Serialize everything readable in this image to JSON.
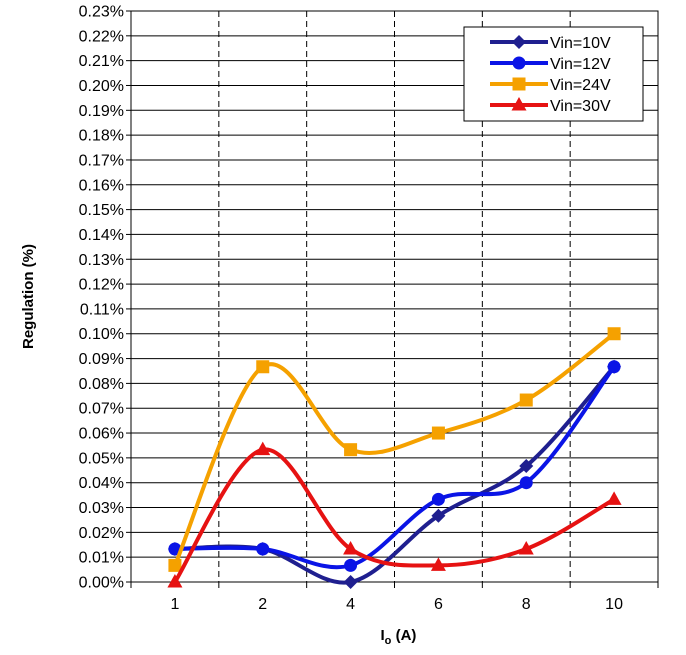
{
  "chart_data": {
    "type": "line",
    "categories": [
      "1",
      "2",
      "4",
      "6",
      "8",
      "10"
    ],
    "ylabel": "Regulation (%)",
    "xlabel": {
      "main": "I",
      "sub": "o",
      "rest": " (A)"
    },
    "ylim": [
      0,
      0.23
    ],
    "ytick_step": 0.01,
    "ytick_labels": [
      "0.00%",
      "0.01%",
      "0.02%",
      "0.03%",
      "0.04%",
      "0.05%",
      "0.06%",
      "0.07%",
      "0.08%",
      "0.09%",
      "0.10%",
      "0.11%",
      "0.12%",
      "0.13%",
      "0.14%",
      "0.15%",
      "0.16%",
      "0.17%",
      "0.18%",
      "0.19%",
      "0.20%",
      "0.21%",
      "0.22%",
      "0.23%"
    ],
    "grid": {
      "horizontal": "solid",
      "vertical": "dashed"
    },
    "legend": "top-right",
    "series": [
      {
        "name": "Vin=10V",
        "color": "#1f1f8f",
        "marker": "diamond",
        "values": [
          0.0133,
          0.0133,
          0.0,
          0.0267,
          0.0467,
          0.0867
        ]
      },
      {
        "name": "Vin=12V",
        "color": "#0a14e6",
        "marker": "circle",
        "values": [
          0.0133,
          0.0133,
          0.0067,
          0.0333,
          0.04,
          0.0867
        ]
      },
      {
        "name": "Vin=24V",
        "color": "#f5a100",
        "marker": "square",
        "values": [
          0.0067,
          0.0867,
          0.0533,
          0.06,
          0.0733,
          0.1
        ]
      },
      {
        "name": "Vin=30V",
        "color": "#e61212",
        "marker": "triangle",
        "values": [
          0.0,
          0.0533,
          0.0133,
          0.0067,
          0.0133,
          0.0333
        ]
      }
    ]
  }
}
